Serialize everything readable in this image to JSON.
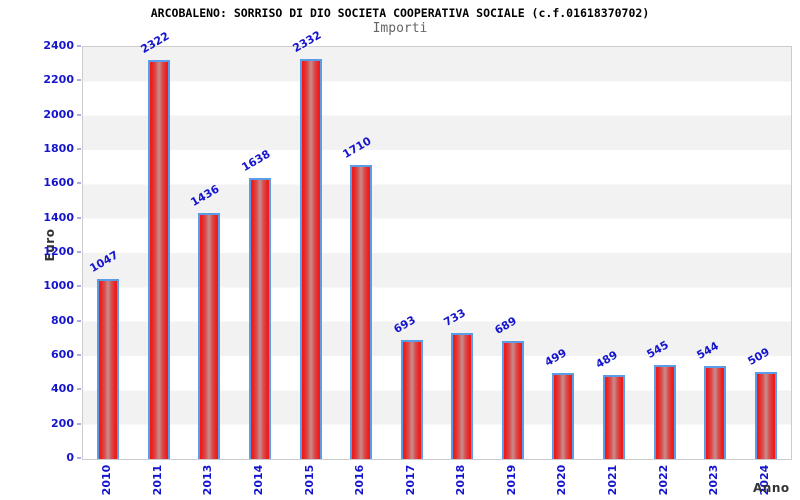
{
  "title": "ARCOBALENO: SORRISO DI DIO SOCIETA COOPERATIVA SOCIALE (c.f.01618370702)",
  "subtitle": "Importi",
  "chart_data": {
    "type": "bar",
    "title": "Importi",
    "categories": [
      "2010",
      "2011",
      "2013",
      "2014",
      "2015",
      "2016",
      "2017",
      "2018",
      "2019",
      "2020",
      "2021",
      "2022",
      "2023",
      "2024"
    ],
    "values": [
      1047,
      2322,
      1436,
      1638,
      2332,
      1710,
      693,
      733,
      689,
      499,
      489,
      545,
      544,
      509
    ],
    "xlabel": "Anno",
    "ylabel": "Euro",
    "ylim": [
      0,
      2400
    ],
    "ytick_step": 200,
    "grid": "alternating-horizontal-bands",
    "legend": "none",
    "bar_labels_rotation_deg": -30,
    "x_tick_rotation_deg": -90
  },
  "colors": {
    "title_text": "#000000",
    "subtitle_text": "#666666",
    "axis_text": "#1515cd",
    "axis_title_text": "#333333",
    "bar_fill_edge": "#ee1c1c",
    "bar_fill_center": "#c68f8f",
    "bar_border": "#5b9ce6",
    "band_gray": "#f2f2f2",
    "band_white": "#ffffff",
    "plot_border": "#cccccc"
  }
}
